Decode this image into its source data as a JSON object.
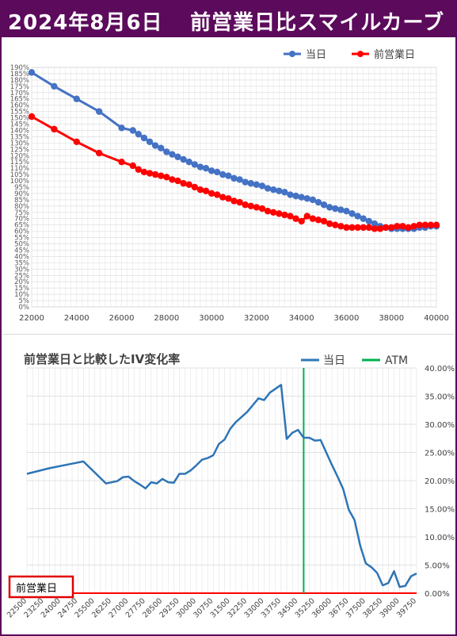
{
  "header": {
    "date": "2024年8月6日",
    "title": "前営業日比スマイルカーブ"
  },
  "chart_data": [
    {
      "type": "line",
      "title": "",
      "legend_position": "top-right",
      "grid": true,
      "xlim": [
        22000,
        40000
      ],
      "ylim": [
        0,
        190
      ],
      "x_ticks": [
        "22000",
        "24000",
        "26000",
        "28000",
        "30000",
        "32000",
        "34000",
        "36000",
        "38000",
        "40000"
      ],
      "y_ticks": [
        "0%",
        "5%",
        "10%",
        "15%",
        "20%",
        "25%",
        "30%",
        "35%",
        "40%",
        "45%",
        "50%",
        "55%",
        "60%",
        "65%",
        "70%",
        "75%",
        "80%",
        "85%",
        "90%",
        "95%",
        "100%",
        "105%",
        "110%",
        "115%",
        "120%",
        "125%",
        "130%",
        "135%",
        "140%",
        "145%",
        "150%",
        "155%",
        "160%",
        "165%",
        "170%",
        "175%",
        "180%",
        "185%",
        "190%"
      ],
      "series": [
        {
          "name": "当日",
          "color": "#4472c4",
          "points": [
            [
              22000,
              186
            ],
            [
              23000,
              175
            ],
            [
              24000,
              165
            ],
            [
              25000,
              155
            ],
            [
              26000,
              142
            ],
            [
              26500,
              140
            ],
            [
              26750,
              137
            ],
            [
              27000,
              134
            ],
            [
              27250,
              131
            ],
            [
              27500,
              128
            ],
            [
              27750,
              126
            ],
            [
              28000,
              123
            ],
            [
              28250,
              121
            ],
            [
              28500,
              119
            ],
            [
              28750,
              117
            ],
            [
              29000,
              115
            ],
            [
              29250,
              113
            ],
            [
              29500,
              111
            ],
            [
              29750,
              110
            ],
            [
              30000,
              108
            ],
            [
              30250,
              107
            ],
            [
              30500,
              105
            ],
            [
              30750,
              104
            ],
            [
              31000,
              102
            ],
            [
              31250,
              101
            ],
            [
              31500,
              99
            ],
            [
              31750,
              98
            ],
            [
              32000,
              97
            ],
            [
              32250,
              96
            ],
            [
              32500,
              94
            ],
            [
              32750,
              93
            ],
            [
              33000,
              92
            ],
            [
              33250,
              91
            ],
            [
              33500,
              89
            ],
            [
              33750,
              88
            ],
            [
              34000,
              87
            ],
            [
              34250,
              86
            ],
            [
              34500,
              85
            ],
            [
              34750,
              83
            ],
            [
              35000,
              81
            ],
            [
              35250,
              79
            ],
            [
              35500,
              78
            ],
            [
              35750,
              77
            ],
            [
              36000,
              76
            ],
            [
              36250,
              74
            ],
            [
              36500,
              72
            ],
            [
              36750,
              70
            ],
            [
              37000,
              68
            ],
            [
              37250,
              66
            ],
            [
              37500,
              64
            ],
            [
              37750,
              63
            ],
            [
              38000,
              62
            ],
            [
              38250,
              62
            ],
            [
              38500,
              62
            ],
            [
              38750,
              62
            ],
            [
              39000,
              62
            ],
            [
              39250,
              63
            ],
            [
              39500,
              63
            ],
            [
              39750,
              64
            ],
            [
              40000,
              64
            ]
          ]
        },
        {
          "name": "前営業日",
          "color": "#ff0000",
          "points": [
            [
              22000,
              151
            ],
            [
              23000,
              141
            ],
            [
              24000,
              131
            ],
            [
              25000,
              122
            ],
            [
              26000,
              115
            ],
            [
              26500,
              112
            ],
            [
              26750,
              109
            ],
            [
              27000,
              107
            ],
            [
              27250,
              106
            ],
            [
              27500,
              105
            ],
            [
              27750,
              104
            ],
            [
              28000,
              103
            ],
            [
              28250,
              101
            ],
            [
              28500,
              100
            ],
            [
              28750,
              98
            ],
            [
              29000,
              97
            ],
            [
              29250,
              95
            ],
            [
              29500,
              93
            ],
            [
              29750,
              92
            ],
            [
              30000,
              90
            ],
            [
              30250,
              89
            ],
            [
              30500,
              87
            ],
            [
              30750,
              86
            ],
            [
              31000,
              84
            ],
            [
              31250,
              83
            ],
            [
              31500,
              81
            ],
            [
              31750,
              80
            ],
            [
              32000,
              79
            ],
            [
              32250,
              78
            ],
            [
              32500,
              76
            ],
            [
              32750,
              75
            ],
            [
              33000,
              74
            ],
            [
              33250,
              73
            ],
            [
              33500,
              72
            ],
            [
              33750,
              70
            ],
            [
              34000,
              68
            ],
            [
              34250,
              72
            ],
            [
              34500,
              70
            ],
            [
              34750,
              69
            ],
            [
              35000,
              68
            ],
            [
              35250,
              66
            ],
            [
              35500,
              65
            ],
            [
              35750,
              64
            ],
            [
              36000,
              63
            ],
            [
              36250,
              63
            ],
            [
              36500,
              63
            ],
            [
              36750,
              63
            ],
            [
              37000,
              63
            ],
            [
              37250,
              62
            ],
            [
              37500,
              62
            ],
            [
              37750,
              63
            ],
            [
              38000,
              63
            ],
            [
              38250,
              64
            ],
            [
              38500,
              64
            ],
            [
              38750,
              63
            ],
            [
              39000,
              64
            ],
            [
              39250,
              65
            ],
            [
              39500,
              65
            ],
            [
              39750,
              65
            ],
            [
              40000,
              65
            ]
          ]
        }
      ]
    },
    {
      "type": "line",
      "title": "前営業日と比較したIV変化率",
      "legend_position": "top-right",
      "grid": true,
      "x_categories_labeled": [
        "22500",
        "23250",
        "24000",
        "24750",
        "25500",
        "26250",
        "27000",
        "27750",
        "28500",
        "29250",
        "30000",
        "30750",
        "31500",
        "32250",
        "33000",
        "33750",
        "34500",
        "35250",
        "36000",
        "36750",
        "37500",
        "38250",
        "39000",
        "39750"
      ],
      "xlim": [
        22500,
        39750
      ],
      "y_right_ticks": [
        "0.00%",
        "5.00%",
        "10.00%",
        "15.00%",
        "20.00%",
        "25.00%",
        "30.00%",
        "35.00%",
        "40.00%"
      ],
      "ylim": [
        0,
        40
      ],
      "annotation_box": "前営業日",
      "series": [
        {
          "name": "当日",
          "color": "#2e75b6",
          "points": [
            [
              22500,
              21.2
            ],
            [
              23500,
              22.2
            ],
            [
              24500,
              23.0
            ],
            [
              25000,
              23.4
            ],
            [
              26000,
              19.5
            ],
            [
              26500,
              19.9
            ],
            [
              26750,
              20.6
            ],
            [
              27000,
              20.7
            ],
            [
              27250,
              19.9
            ],
            [
              27500,
              19.3
            ],
            [
              27750,
              18.6
            ],
            [
              28000,
              19.7
            ],
            [
              28250,
              19.5
            ],
            [
              28500,
              20.3
            ],
            [
              28750,
              19.7
            ],
            [
              29000,
              19.6
            ],
            [
              29250,
              21.2
            ],
            [
              29500,
              21.2
            ],
            [
              29750,
              21.8
            ],
            [
              30000,
              22.7
            ],
            [
              30250,
              23.7
            ],
            [
              30500,
              24.0
            ],
            [
              30750,
              24.5
            ],
            [
              31000,
              26.5
            ],
            [
              31250,
              27.3
            ],
            [
              31500,
              29.2
            ],
            [
              31750,
              30.4
            ],
            [
              32000,
              31.3
            ],
            [
              32250,
              32.2
            ],
            [
              32500,
              33.4
            ],
            [
              32750,
              34.6
            ],
            [
              33000,
              34.3
            ],
            [
              33250,
              35.6
            ],
            [
              33500,
              36.3
            ],
            [
              33750,
              37.0
            ],
            [
              34000,
              27.4
            ],
            [
              34250,
              28.5
            ],
            [
              34500,
              29.0
            ],
            [
              34750,
              27.6
            ],
            [
              35000,
              27.6
            ],
            [
              35250,
              27.1
            ],
            [
              35500,
              27.2
            ],
            [
              35750,
              25.0
            ],
            [
              36000,
              22.8
            ],
            [
              36250,
              20.7
            ],
            [
              36500,
              18.5
            ],
            [
              36750,
              14.8
            ],
            [
              37000,
              13.0
            ],
            [
              37250,
              8.5
            ],
            [
              37500,
              5.3
            ],
            [
              37750,
              4.6
            ],
            [
              38000,
              3.6
            ],
            [
              38250,
              1.4
            ],
            [
              38500,
              1.8
            ],
            [
              38750,
              3.9
            ],
            [
              39000,
              1.1
            ],
            [
              39250,
              1.3
            ],
            [
              39500,
              3.0
            ],
            [
              39750,
              3.5
            ]
          ]
        },
        {
          "name": "ATM",
          "color": "#00b050",
          "x": 34750
        },
        {
          "name": "前営業日",
          "color": "#ff0000",
          "value": 0
        }
      ]
    }
  ]
}
